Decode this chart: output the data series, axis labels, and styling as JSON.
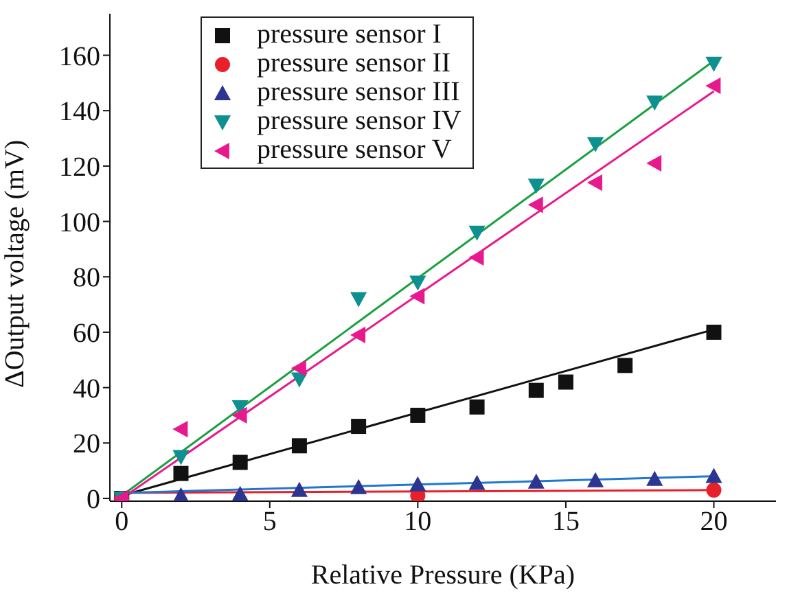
{
  "chart_data": {
    "type": "scatter",
    "xlabel": "Relative Pressure (KPa)",
    "ylabel": "ΔOutput voltage (mV)",
    "xlim": [
      -0.4,
      22.1
    ],
    "ylim": [
      -1,
      175
    ],
    "xticks": [
      0,
      5,
      10,
      15,
      20
    ],
    "yticks": [
      0,
      20,
      40,
      60,
      80,
      100,
      120,
      140,
      160
    ],
    "grid": false,
    "legend": "top left",
    "series": [
      {
        "name": "pressure sensor I",
        "color": "#111111",
        "marker": "square",
        "x": [
          0,
          2,
          4,
          6,
          8,
          10,
          12,
          14,
          15,
          17,
          20
        ],
        "values": [
          0,
          9,
          13,
          19,
          26,
          30,
          33,
          39,
          42,
          48,
          60
        ]
      },
      {
        "name": "pressure sensor II",
        "color": "#e8202a",
        "marker": "circle",
        "x": [
          0,
          10,
          20
        ],
        "values": [
          0,
          1,
          3
        ]
      },
      {
        "name": "pressure sensor III",
        "color": "#2c3590",
        "marker": "triangle",
        "x": [
          2,
          4,
          6,
          8,
          10,
          12,
          14,
          16,
          18,
          20
        ],
        "values": [
          1,
          1.5,
          3,
          4,
          5,
          5.5,
          6,
          6.5,
          7,
          8
        ]
      },
      {
        "name": "pressure sensor IV",
        "color": "#0e9090",
        "marker": "triangle-down",
        "x": [
          0,
          2,
          4,
          6,
          8,
          10,
          12,
          14,
          16,
          18,
          20
        ],
        "values": [
          0,
          15,
          33,
          43,
          72,
          78,
          96,
          113,
          128,
          143,
          157
        ]
      },
      {
        "name": "pressure sensor V",
        "color": "#e8198c",
        "marker": "triangle-left",
        "x": [
          0,
          2,
          4,
          6,
          8,
          10,
          12,
          14,
          16,
          18,
          20
        ],
        "values": [
          0,
          25,
          30,
          47,
          59,
          73,
          87,
          106,
          114,
          121,
          149
        ]
      },
      {
        "type": "line",
        "color": "#111111",
        "marker": "none",
        "x": [
          0,
          20
        ],
        "values": [
          1,
          61
        ]
      },
      {
        "type": "line",
        "color": "#e8202a",
        "marker": "none",
        "x": [
          0,
          20
        ],
        "values": [
          2,
          3
        ]
      },
      {
        "type": "line",
        "color": "#1f78d0",
        "marker": "none",
        "x": [
          0,
          20
        ],
        "values": [
          2,
          8
        ]
      },
      {
        "type": "line",
        "color": "#1aa040",
        "marker": "none",
        "x": [
          0,
          20
        ],
        "values": [
          1,
          158
        ]
      },
      {
        "type": "line",
        "color": "#e8198c",
        "marker": "none",
        "x": [
          0,
          20
        ],
        "values": [
          0,
          147
        ]
      }
    ]
  }
}
